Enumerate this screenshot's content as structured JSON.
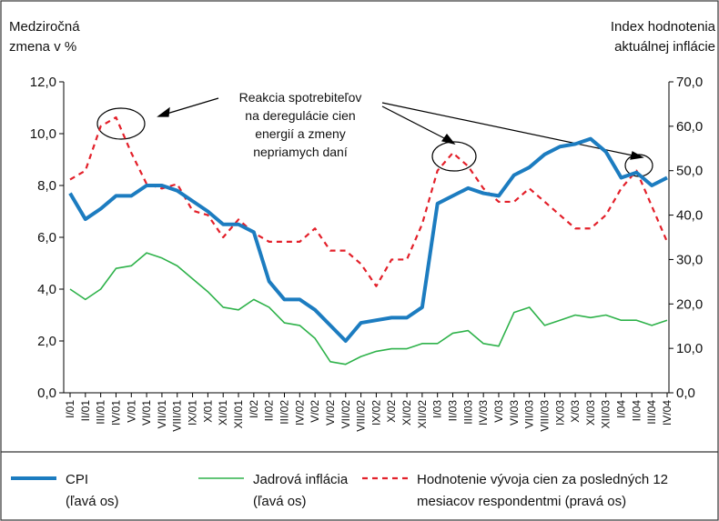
{
  "chart_data": {
    "type": "line",
    "y_axis_title": [
      "Medziročná",
      "zmena v %"
    ],
    "y2_axis_title": [
      "Index hodnotenia",
      "aktuálnej inflácie"
    ],
    "annotation": [
      "Reakcia spotrebiteľov",
      "na deregulácie cien",
      "energií a zmeny",
      "nepriamych daní"
    ],
    "categories": [
      "I/01",
      "II/01",
      "III/01",
      "IV/01",
      "V/01",
      "VI/01",
      "VII/01",
      "VIII/01",
      "IX/01",
      "X/01",
      "XI/01",
      "XII/01",
      "I/02",
      "II/02",
      "III/02",
      "IV/02",
      "V/02",
      "VI/02",
      "VII/02",
      "VIII/02",
      "IX/02",
      "X/02",
      "XI/02",
      "XII/02",
      "I/03",
      "II/03",
      "III/03",
      "IV/03",
      "V/03",
      "VI/03",
      "VII/03",
      "VIII/03",
      "IX/03",
      "X/03",
      "XI/03",
      "XII/03",
      "I/04",
      "II/04",
      "III/04",
      "IV/04"
    ],
    "ylim": [
      0,
      12
    ],
    "yticks": [
      {
        "value": 0,
        "label": "0,0"
      },
      {
        "value": 2,
        "label": "2,0"
      },
      {
        "value": 4,
        "label": "4,0"
      },
      {
        "value": 6,
        "label": "6,0"
      },
      {
        "value": 8,
        "label": "8,0"
      },
      {
        "value": 10,
        "label": "10,0"
      },
      {
        "value": 12,
        "label": "12,0"
      }
    ],
    "y2lim": [
      0,
      70
    ],
    "y2ticks": [
      {
        "value": 0,
        "label": "0,0"
      },
      {
        "value": 10,
        "label": "10,0"
      },
      {
        "value": 20,
        "label": "20,0"
      },
      {
        "value": 30,
        "label": "30,0"
      },
      {
        "value": 40,
        "label": "40,0"
      },
      {
        "value": 50,
        "label": "50,0"
      },
      {
        "value": 60,
        "label": "60,0"
      },
      {
        "value": 70,
        "label": "70,0"
      }
    ],
    "series": [
      {
        "name": [
          "CPI",
          "(ľavá os)"
        ],
        "color": "#1c7cc0",
        "width": 4,
        "dashed": false,
        "values": [
          7.7,
          6.7,
          7.1,
          7.6,
          7.6,
          8.0,
          8.0,
          7.8,
          7.4,
          7.0,
          6.5,
          6.5,
          6.2,
          4.3,
          3.6,
          3.6,
          3.2,
          2.6,
          2.0,
          2.7,
          2.8,
          2.9,
          2.9,
          3.3,
          7.3,
          7.6,
          7.9,
          7.7,
          7.6,
          8.4,
          8.7,
          9.2,
          9.5,
          9.6,
          9.8,
          9.3,
          8.3,
          8.5,
          8.0,
          8.3
        ]
      },
      {
        "name": [
          "Jadrová inflácia",
          "(ľavá os)"
        ],
        "color": "#2eb24a",
        "width": 1.6,
        "dashed": false,
        "values": [
          4.0,
          3.6,
          4.0,
          4.8,
          4.9,
          5.4,
          5.2,
          4.9,
          4.4,
          3.9,
          3.3,
          3.2,
          3.6,
          3.3,
          2.7,
          2.6,
          2.1,
          1.2,
          1.1,
          1.4,
          1.6,
          1.7,
          1.7,
          1.9,
          1.9,
          2.3,
          2.4,
          1.9,
          1.8,
          3.1,
          3.3,
          2.6,
          2.8,
          3.0,
          2.9,
          3.0,
          2.8,
          2.8,
          2.6,
          2.8
        ]
      },
      {
        "name": [
          "Hodnotenie vývoja cien za posledných 12",
          "mesiacov respondentmi (pravá os)"
        ],
        "color": "#e3202a",
        "width": 2.2,
        "dashed": true,
        "axis": "y2",
        "values": [
          48,
          50,
          60,
          62,
          54,
          47,
          46,
          47,
          41,
          40,
          35,
          39,
          36,
          34,
          34,
          34,
          37,
          32,
          32,
          29,
          24,
          30,
          30,
          38,
          50,
          54,
          51,
          46,
          43,
          43,
          46,
          43,
          40,
          37,
          37,
          40,
          46,
          50,
          42,
          34
        ]
      }
    ]
  }
}
